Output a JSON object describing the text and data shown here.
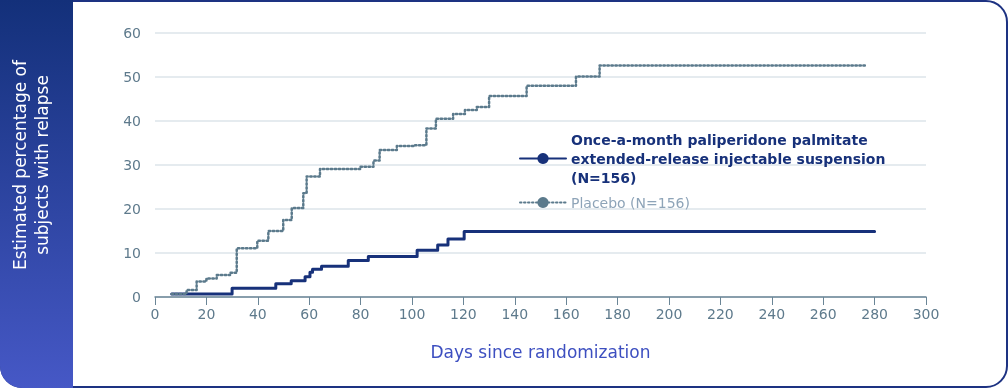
{
  "chart_data": {
    "type": "step",
    "xlabel": "Days since randomization",
    "ylabel": "Estimated percentage of\nsubjects with relapse",
    "xlim": [
      0,
      300
    ],
    "xticks": [
      0,
      20,
      40,
      60,
      80,
      100,
      120,
      140,
      160,
      180,
      200,
      220,
      240,
      260,
      280,
      300
    ],
    "ylim": [
      0,
      60
    ],
    "yticks": [
      0,
      10,
      20,
      30,
      40,
      50,
      60
    ],
    "grid": "y",
    "legend": "right",
    "marker": "none",
    "series": [
      {
        "name": "Once-a-month paliperidone palmitate extended-release injectable suspension (N=156)",
        "color": "#17317a",
        "line_style": "solid",
        "x": [
          6.5,
          30,
          47,
          53,
          58.4,
          60.3,
          61.3,
          64.8,
          75.2,
          83,
          102,
          110,
          114,
          120.3,
          280
        ],
        "values": [
          0.7,
          2.0,
          3.0,
          3.7,
          4.6,
          5.6,
          6.3,
          7.0,
          8.3,
          9.2,
          10.6,
          11.8,
          13.2,
          14.9,
          14.9
        ]
      },
      {
        "name": "Placebo (N=156)",
        "color": "#5b7a8c",
        "line_style": "dotted",
        "x": [
          6.5,
          12.3,
          16.2,
          20,
          24,
          29.2,
          31.8,
          39.8,
          44.1,
          49.9,
          53.2,
          57.7,
          59,
          64.2,
          79.8,
          85,
          87.4,
          94.1,
          101.2,
          105.6,
          109.3,
          116,
          120.6,
          125.2,
          130,
          144.6,
          163.8,
          173,
          277
        ],
        "values": [
          0.7,
          1.6,
          3.5,
          4.2,
          5.0,
          5.5,
          11.1,
          12.8,
          15.0,
          17.5,
          20.2,
          23.6,
          27.4,
          29.1,
          29.6,
          31.0,
          33.4,
          34.3,
          34.5,
          38.3,
          40.5,
          41.6,
          42.5,
          43.2,
          45.7,
          48.0,
          50.1,
          52.6,
          52.6
        ]
      }
    ]
  }
}
